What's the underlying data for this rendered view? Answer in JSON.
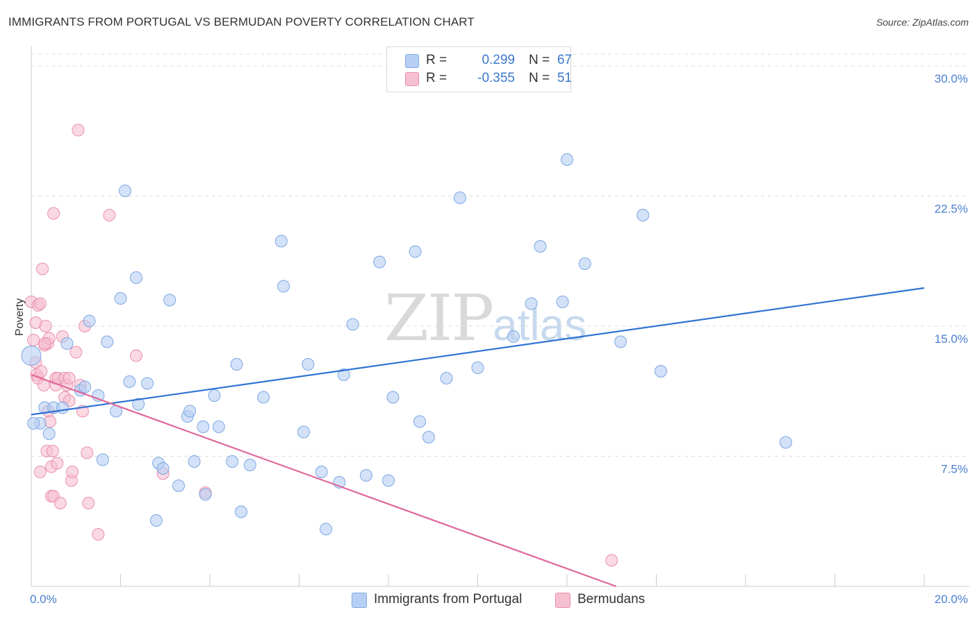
{
  "title": "IMMIGRANTS FROM PORTUGAL VS BERMUDAN POVERTY CORRELATION CHART",
  "source": "Source: ZipAtlas.com",
  "watermark": {
    "zip": "ZIP",
    "atlas": "atlas"
  },
  "legend": {
    "series1": {
      "r_label": "R =",
      "r_value": "0.299",
      "n_label": "N =",
      "n_value": "67"
    },
    "series2": {
      "r_label": "R =",
      "r_value": "-0.355",
      "n_label": "N =",
      "n_value": "51"
    }
  },
  "colors": {
    "blue_fill": "#b6cff3",
    "blue_stroke": "#7da7e2",
    "blue_line": "#2f73d4",
    "pink_fill": "#f7c0d0",
    "pink_stroke": "#e98fae",
    "pink_line": "#e0669a",
    "grid": "#dddddd",
    "tick_text": "#4a7fd0"
  },
  "chart_data": {
    "type": "scatter",
    "title": "IMMIGRANTS FROM PORTUGAL VS BERMUDAN POVERTY CORRELATION CHART",
    "xlabel": "",
    "ylabel": "Poverty",
    "xlim": [
      0,
      20
    ],
    "ylim": [
      0,
      31
    ],
    "x_tick_labels": [
      "0.0%",
      "20.0%"
    ],
    "y_ticks": [
      7.5,
      15.0,
      22.5,
      30.0
    ],
    "y_tick_labels": [
      "7.5%",
      "15.0%",
      "22.5%",
      "30.0%"
    ],
    "grid": "horizontal dashed",
    "legend_position": "top-center",
    "series": [
      {
        "name": "Immigrants from Portugal",
        "color": "#b6cff3",
        "trend": {
          "x": [
            0,
            20
          ],
          "y": [
            9.9,
            17.2
          ]
        },
        "points": [
          [
            0.0,
            13.3
          ],
          [
            0.2,
            9.4
          ],
          [
            0.3,
            10.3
          ],
          [
            0.4,
            8.8
          ],
          [
            0.5,
            10.3
          ],
          [
            0.7,
            10.3
          ],
          [
            0.8,
            14.0
          ],
          [
            1.1,
            11.3
          ],
          [
            1.2,
            11.5
          ],
          [
            1.3,
            15.3
          ],
          [
            1.5,
            11.0
          ],
          [
            1.6,
            7.3
          ],
          [
            1.7,
            14.1
          ],
          [
            1.9,
            10.1
          ],
          [
            2.0,
            16.6
          ],
          [
            2.1,
            22.8
          ],
          [
            2.2,
            11.8
          ],
          [
            2.4,
            10.5
          ],
          [
            2.35,
            17.8
          ],
          [
            2.6,
            11.7
          ],
          [
            2.8,
            3.8
          ],
          [
            2.85,
            7.1
          ],
          [
            2.95,
            6.8
          ],
          [
            3.1,
            16.5
          ],
          [
            3.3,
            5.8
          ],
          [
            3.5,
            9.8
          ],
          [
            3.55,
            10.1
          ],
          [
            3.65,
            7.2
          ],
          [
            3.85,
            9.2
          ],
          [
            3.9,
            5.3
          ],
          [
            4.1,
            11.0
          ],
          [
            4.2,
            9.2
          ],
          [
            4.5,
            7.2
          ],
          [
            4.6,
            12.8
          ],
          [
            4.7,
            4.3
          ],
          [
            4.9,
            7.0
          ],
          [
            5.2,
            10.9
          ],
          [
            5.6,
            19.9
          ],
          [
            5.65,
            17.3
          ],
          [
            6.1,
            8.9
          ],
          [
            6.2,
            12.8
          ],
          [
            6.5,
            6.6
          ],
          [
            6.6,
            3.3
          ],
          [
            6.9,
            6.0
          ],
          [
            7.0,
            12.2
          ],
          [
            7.2,
            15.1
          ],
          [
            7.5,
            6.4
          ],
          [
            7.8,
            18.7
          ],
          [
            8.0,
            6.1
          ],
          [
            8.1,
            10.9
          ],
          [
            8.6,
            19.3
          ],
          [
            8.7,
            9.5
          ],
          [
            8.9,
            8.6
          ],
          [
            9.3,
            12.0
          ],
          [
            9.6,
            22.4
          ],
          [
            10.0,
            12.6
          ],
          [
            10.8,
            14.4
          ],
          [
            11.2,
            16.3
          ],
          [
            11.4,
            19.6
          ],
          [
            11.9,
            16.4
          ],
          [
            12.0,
            24.6
          ],
          [
            12.4,
            18.6
          ],
          [
            13.2,
            14.1
          ],
          [
            13.7,
            21.4
          ],
          [
            14.1,
            12.4
          ],
          [
            16.9,
            8.3
          ],
          [
            0.05,
            9.4
          ]
        ]
      },
      {
        "name": "Bermudans",
        "color": "#f7c0d0",
        "trend": {
          "x": [
            0,
            13.1
          ],
          "y": [
            12.2,
            0
          ]
        },
        "points": [
          [
            0.0,
            16.4
          ],
          [
            0.05,
            14.2
          ],
          [
            0.1,
            15.2
          ],
          [
            0.1,
            12.9
          ],
          [
            0.12,
            12.2
          ],
          [
            0.15,
            16.2
          ],
          [
            0.15,
            12.0
          ],
          [
            0.2,
            16.3
          ],
          [
            0.2,
            6.6
          ],
          [
            0.22,
            12.4
          ],
          [
            0.25,
            18.3
          ],
          [
            0.28,
            11.6
          ],
          [
            0.3,
            13.9
          ],
          [
            0.32,
            15.0
          ],
          [
            0.35,
            7.8
          ],
          [
            0.37,
            14.0
          ],
          [
            0.38,
            10.1
          ],
          [
            0.4,
            14.3
          ],
          [
            0.42,
            9.5
          ],
          [
            0.45,
            6.9
          ],
          [
            0.45,
            5.2
          ],
          [
            0.48,
            7.8
          ],
          [
            0.5,
            5.2
          ],
          [
            0.5,
            21.5
          ],
          [
            0.55,
            12.0
          ],
          [
            0.55,
            11.6
          ],
          [
            0.58,
            7.1
          ],
          [
            0.6,
            12.0
          ],
          [
            0.65,
            4.8
          ],
          [
            0.7,
            14.4
          ],
          [
            0.75,
            12.0
          ],
          [
            0.75,
            10.9
          ],
          [
            0.8,
            11.6
          ],
          [
            0.85,
            10.7
          ],
          [
            0.85,
            12.0
          ],
          [
            0.9,
            6.1
          ],
          [
            0.92,
            6.6
          ],
          [
            1.0,
            13.5
          ],
          [
            1.05,
            26.3
          ],
          [
            1.1,
            11.6
          ],
          [
            1.15,
            10.1
          ],
          [
            1.2,
            15.0
          ],
          [
            1.25,
            7.7
          ],
          [
            1.28,
            4.8
          ],
          [
            1.5,
            3.0
          ],
          [
            1.75,
            21.4
          ],
          [
            2.35,
            13.3
          ],
          [
            2.95,
            6.5
          ],
          [
            3.9,
            5.4
          ],
          [
            13.0,
            1.5
          ],
          [
            0.3,
            14.0
          ]
        ]
      }
    ]
  },
  "bottom_legend": {
    "item1": "Immigrants from Portugal",
    "item2": "Bermudans"
  }
}
